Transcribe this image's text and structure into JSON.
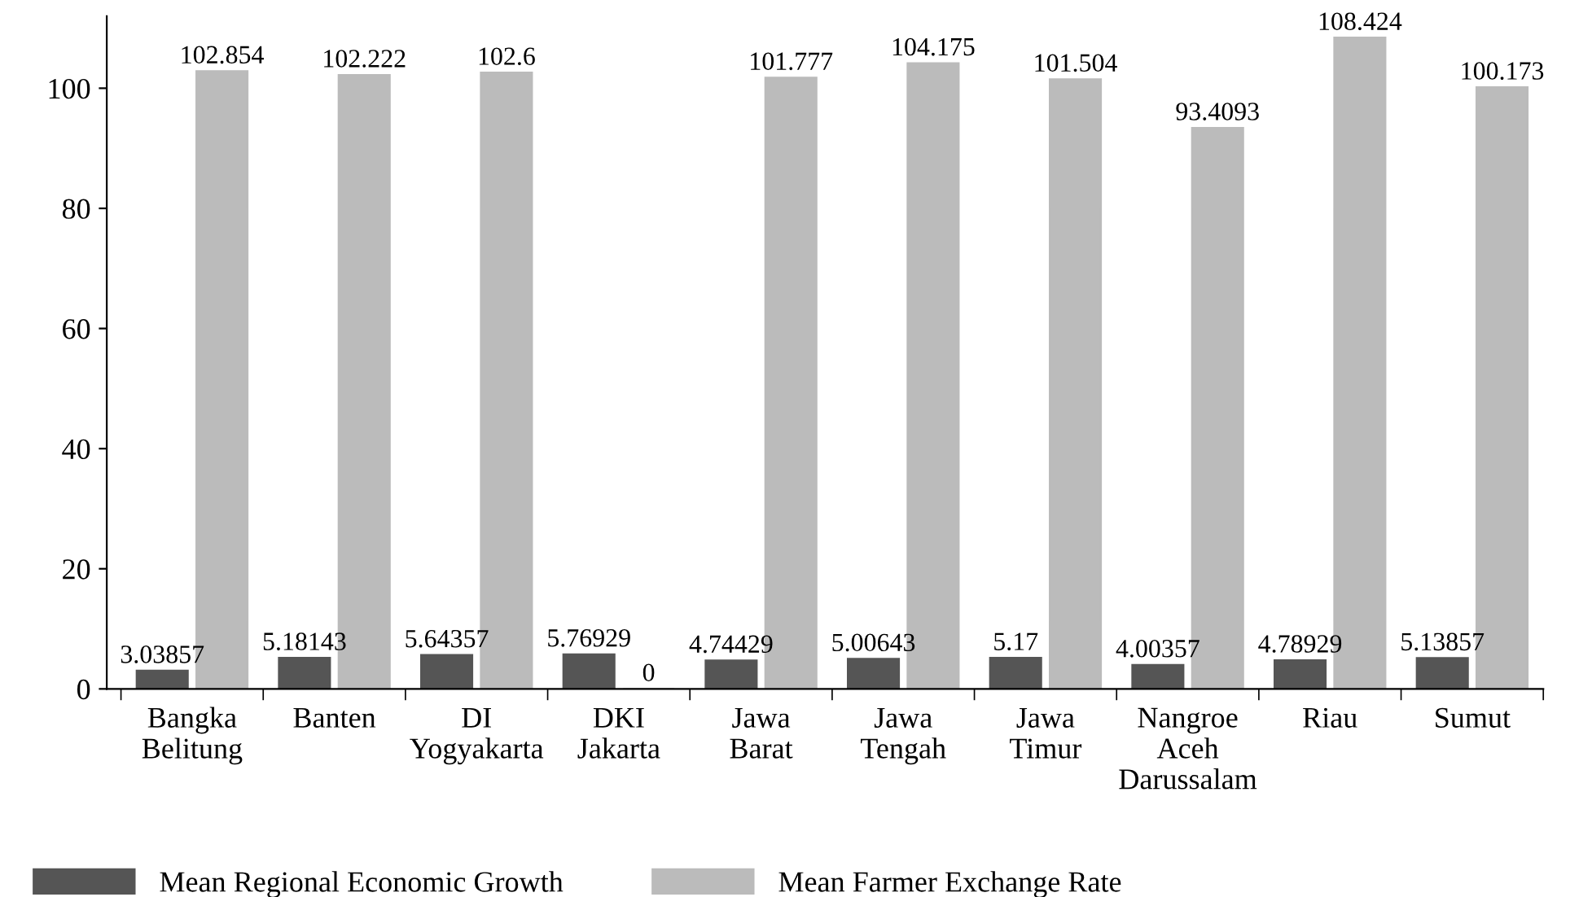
{
  "chart_data": {
    "type": "bar",
    "categories": [
      "Bangka\nBelitung",
      "Banten",
      "DI\nYogyakarta",
      "DKI\nJakarta",
      "Jawa\nBarat",
      "Jawa\nTengah",
      "Jawa\nTimur",
      "Nangroe\nAceh\nDarussalam",
      "Riau",
      "Sumut"
    ],
    "series": [
      {
        "name": "Mean Regional Economic Growth",
        "color": "#555555",
        "values": [
          3.03857,
          5.18143,
          5.64357,
          5.76929,
          4.74429,
          5.00643,
          5.17,
          4.00357,
          4.78929,
          5.13857
        ]
      },
      {
        "name": "Mean Farmer Exchange Rate",
        "color": "#bbbbbb",
        "values": [
          102.854,
          102.222,
          102.6,
          0,
          101.777,
          104.175,
          101.504,
          93.4093,
          108.424,
          100.173
        ]
      }
    ],
    "ylim": [
      0,
      112
    ],
    "yticks": [
      0,
      20,
      40,
      60,
      80,
      100
    ],
    "data_labels": true,
    "grid": false,
    "legend": "bottom left"
  }
}
